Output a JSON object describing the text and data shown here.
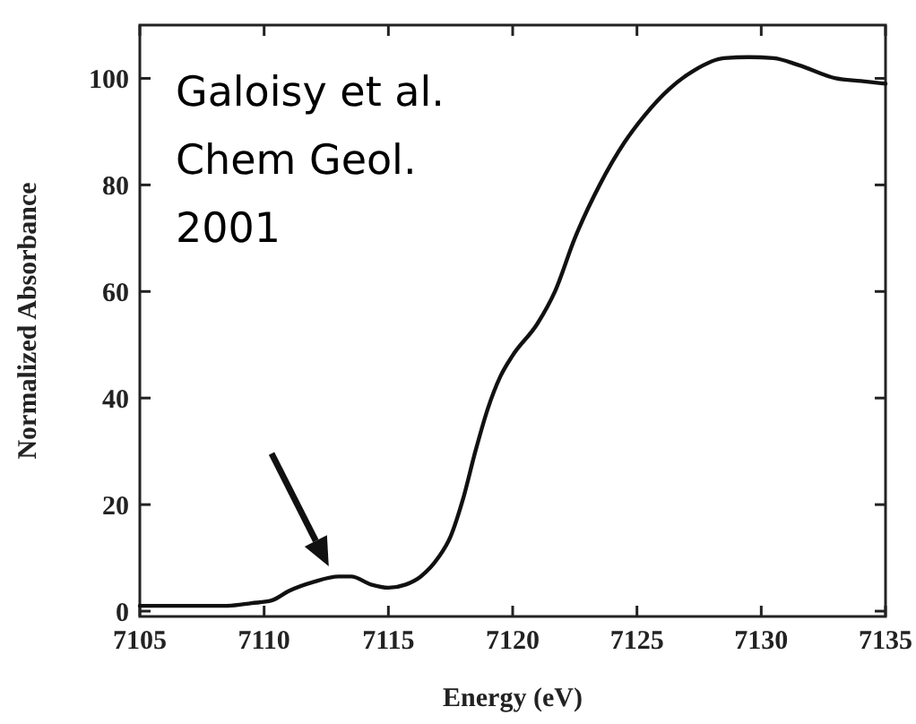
{
  "chart_data": {
    "type": "line",
    "xlabel": "Energy (eV)",
    "ylabel": "Normalized Absorbance",
    "annotations": [
      "Galoisy et al.",
      "Chem Geol.",
      "2001"
    ],
    "x": [
      7105,
      7107,
      7108.5,
      7109.5,
      7110.3,
      7111,
      7112,
      7113,
      7113.5,
      7114.3,
      7115,
      7115.7,
      7116.3,
      7117,
      7117.5,
      7118,
      7118.5,
      7119,
      7119.5,
      7120,
      7121,
      7121.7,
      7122.5,
      7123.5,
      7124.5,
      7125.3,
      7126.3,
      7127.3,
      7128.5,
      7129.5,
      7130.5,
      7131.5,
      7133,
      7134,
      7135
    ],
    "series": [
      {
        "color": "#111111",
        "values": [
          1,
          1,
          1,
          1.5,
          2,
          3.8,
          5.5,
          6.5,
          6.5,
          5,
          4.4,
          5,
          6.5,
          10,
          14,
          21,
          30,
          38,
          44,
          48,
          54,
          60,
          70,
          80,
          88,
          93,
          98,
          101.5,
          103.8,
          104,
          103.8,
          102.5,
          100,
          99.5,
          99
        ]
      }
    ],
    "xlim": [
      7105,
      7135
    ],
    "xticks": [
      7105,
      7110,
      7115,
      7120,
      7125,
      7130,
      7135
    ],
    "ylim": [
      -1,
      110
    ],
    "yticks": [
      0,
      20,
      40,
      60,
      80,
      100
    ],
    "grid": false,
    "marker": "none",
    "line_style": "solid"
  }
}
